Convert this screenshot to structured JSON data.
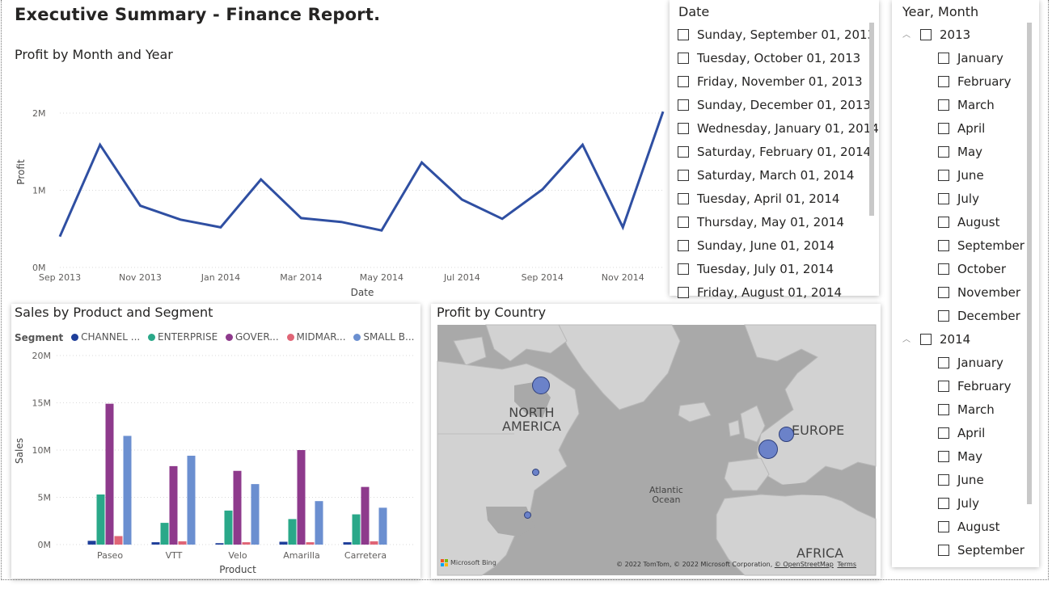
{
  "report": {
    "title": "Executive Summary - Finance Report."
  },
  "profit_chart": {
    "title": "Profit by Month and Year",
    "ylabel": "Profit",
    "xlabel": "Date",
    "y_ticks": [
      "2M",
      "1M",
      "0M"
    ],
    "x_ticks": [
      "Sep 2013",
      "Nov 2013",
      "Jan 2014",
      "Mar 2014",
      "May 2014",
      "Jul 2014",
      "Sep 2014",
      "Nov 2014"
    ]
  },
  "sales_chart": {
    "title": "Sales by Product and Segment",
    "legend_title": "Segment",
    "legend": [
      "CHANNEL ...",
      "ENTERPRISE",
      "GOVER...",
      "MIDMAR...",
      "SMALL B..."
    ],
    "ylabel": "Sales",
    "xlabel": "Product",
    "y_ticks": [
      "20M",
      "15M",
      "10M",
      "5M",
      "0M"
    ]
  },
  "map": {
    "title": "Profit by Country",
    "labels": {
      "north_america": "NORTH\nAMERICA",
      "europe": "EUROPE",
      "atlantic": "Atlantic\nOcean",
      "africa": "AFRICA"
    },
    "attribution": "© 2022 TomTom, © 2022 Microsoft Corporation,",
    "osm_link": "© OpenStreetMap",
    "terms_link": "Terms",
    "bing_logo": "Microsoft Bing"
  },
  "date_slicer": {
    "title": "Date",
    "items": [
      "Sunday, September 01, 2013",
      "Tuesday, October 01, 2013",
      "Friday, November 01, 2013",
      "Sunday, December 01, 2013",
      "Wednesday, January 01, 2014",
      "Saturday, February 01, 2014",
      "Saturday, March 01, 2014",
      "Tuesday, April 01, 2014",
      "Thursday, May 01, 2014",
      "Sunday, June 01, 2014",
      "Tuesday, July 01, 2014",
      "Friday, August 01, 2014"
    ]
  },
  "ym_slicer": {
    "title": "Year, Month",
    "years": [
      {
        "label": "2013",
        "months": [
          "January",
          "February",
          "March",
          "April",
          "May",
          "June",
          "July",
          "August",
          "September",
          "October",
          "November",
          "December"
        ]
      },
      {
        "label": "2014",
        "months": [
          "January",
          "February",
          "March",
          "April",
          "May",
          "June",
          "July",
          "August",
          "September"
        ]
      }
    ]
  },
  "colors": {
    "line": "#2f4fa2",
    "channel": "#1f3f9a",
    "enterprise": "#2aa889",
    "government": "#8e3a8c",
    "midmarket": "#e06576",
    "small_business": "#6b8fd0",
    "map_land": "#cfcfcf",
    "map_water": "#a9a9a9",
    "map_bubble": "#6b82c9"
  },
  "chart_data": [
    {
      "type": "line",
      "title": "Profit by Month and Year",
      "xlabel": "Date",
      "ylabel": "Profit",
      "ylim": [
        0,
        2000000
      ],
      "x": [
        "2013-09",
        "2013-10",
        "2013-11",
        "2013-12",
        "2014-01",
        "2014-02",
        "2014-03",
        "2014-04",
        "2014-05",
        "2014-06",
        "2014-07",
        "2014-08",
        "2014-09",
        "2014-10",
        "2014-11",
        "2014-12"
      ],
      "series": [
        {
          "values": [
            400000,
            1590000,
            800000,
            620000,
            520000,
            1140000,
            640000,
            590000,
            480000,
            1360000,
            880000,
            630000,
            1010000,
            1590000,
            520000,
            2020000
          ]
        }
      ],
      "grid": true
    },
    {
      "type": "bar",
      "title": "Sales by Product and Segment",
      "xlabel": "Product",
      "ylabel": "Sales",
      "ylim": [
        0,
        20000000
      ],
      "categories": [
        "Paseo",
        "VTT",
        "Velo",
        "Amarilla",
        "Carretera"
      ],
      "series": [
        {
          "name": "CHANNEL ...",
          "values": [
            400000,
            250000,
            150000,
            300000,
            250000
          ]
        },
        {
          "name": "ENTERPRISE",
          "values": [
            5300000,
            2300000,
            3600000,
            2700000,
            3200000
          ]
        },
        {
          "name": "GOVER...",
          "values": [
            14900000,
            8300000,
            7800000,
            10000000,
            6100000
          ]
        },
        {
          "name": "MIDMAR...",
          "values": [
            900000,
            350000,
            250000,
            250000,
            350000
          ]
        },
        {
          "name": "SMALL B...",
          "values": [
            11500000,
            9400000,
            6400000,
            4600000,
            3900000
          ]
        }
      ],
      "legend": "top",
      "grid": true
    }
  ]
}
